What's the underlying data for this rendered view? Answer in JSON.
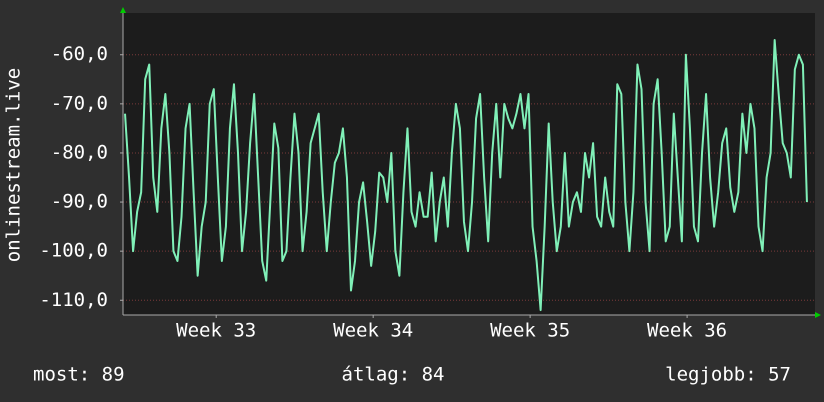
{
  "chart_data": {
    "type": "line",
    "y_label": "onlinestream.live",
    "ylim": [
      -113,
      -51.5
    ],
    "yticks": [
      {
        "value": -60,
        "label": "-60,0"
      },
      {
        "value": -70,
        "label": "-70,0"
      },
      {
        "value": -80,
        "label": "-80,0"
      },
      {
        "value": -90,
        "label": "-90,0"
      },
      {
        "value": -100,
        "label": "-100,0"
      },
      {
        "value": -110,
        "label": "-110,0"
      }
    ],
    "xlim": [
      -0.5,
      171
    ],
    "xticks": [
      {
        "value": 22.6,
        "label": "Week 33"
      },
      {
        "value": 61.5,
        "label": "Week 34"
      },
      {
        "value": 100.4,
        "label": "Week 35"
      },
      {
        "value": 139.3,
        "label": "Week 36"
      }
    ],
    "grid": true,
    "series": [
      {
        "color": "#80f0b8",
        "values": [
          -72,
          -85,
          -100,
          -92,
          -88,
          -65,
          -62,
          -85,
          -92,
          -75,
          -68,
          -80,
          -100,
          -102,
          -93,
          -75,
          -70,
          -88,
          -105,
          -95,
          -90,
          -70,
          -67,
          -85,
          -102,
          -95,
          -75,
          -66,
          -80,
          -100,
          -92,
          -78,
          -68,
          -85,
          -102,
          -106,
          -90,
          -74,
          -79,
          -102,
          -100,
          -85,
          -72,
          -80,
          -100,
          -92,
          -78,
          -75,
          -72,
          -88,
          -100,
          -90,
          -82,
          -80,
          -75,
          -85,
          -108,
          -102,
          -90,
          -86,
          -94,
          -103,
          -96,
          -84,
          -85,
          -90,
          -80,
          -100,
          -105,
          -88,
          -75,
          -92,
          -95,
          -88,
          -93,
          -93,
          -84,
          -98,
          -90,
          -85,
          -95,
          -80,
          -70,
          -75,
          -94,
          -100,
          -90,
          -73,
          -68,
          -85,
          -98,
          -80,
          -70,
          -85,
          -70,
          -73,
          -75,
          -72,
          -68,
          -75,
          -68,
          -95,
          -102,
          -112,
          -95,
          -74,
          -90,
          -100,
          -95,
          -80,
          -95,
          -90,
          -88,
          -92,
          -80,
          -85,
          -78,
          -93,
          -95,
          -85,
          -92,
          -95,
          -66,
          -68,
          -90,
          -100,
          -88,
          -62,
          -67,
          -90,
          -100,
          -70,
          -65,
          -80,
          -98,
          -95,
          -72,
          -85,
          -98,
          -60,
          -75,
          -95,
          -98,
          -80,
          -68,
          -85,
          -95,
          -88,
          -78,
          -75,
          -87,
          -92,
          -88,
          -72,
          -80,
          -70,
          -75,
          -95,
          -100,
          -85,
          -80,
          -57,
          -68,
          -78,
          -80,
          -85,
          -63,
          -60,
          -62,
          -90
        ]
      }
    ],
    "footer": {
      "current": "most: 89",
      "average": "átlag: 84",
      "best": "legjobb: 57"
    }
  }
}
